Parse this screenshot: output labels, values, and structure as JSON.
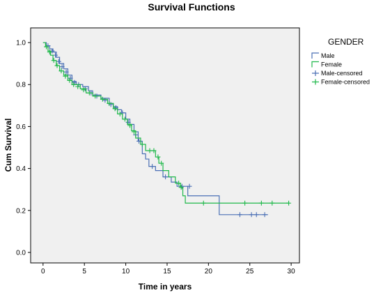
{
  "chart_data": {
    "type": "line",
    "title": "Survival Functions",
    "xlabel": "Time in years",
    "ylabel": "Cum Survival",
    "xlim": [
      -1.5,
      31
    ],
    "ylim": [
      -0.05,
      1.07
    ],
    "x_ticks": [
      0,
      5,
      10,
      15,
      20,
      25,
      30
    ],
    "x_tick_labels": [
      "0",
      "5",
      "10",
      "15",
      "20",
      "25",
      "30"
    ],
    "y_ticks": [
      0.0,
      0.2,
      0.4,
      0.6,
      0.8,
      1.0
    ],
    "y_tick_labels": [
      "0.0",
      "0.2",
      "0.4",
      "0.6",
      "0.8",
      "1.0"
    ],
    "plot_background": "#f0f0f0",
    "grid": false,
    "legend_title": "GENDER",
    "legend_placement": "right",
    "legend": [
      {
        "label": "Male",
        "marker": "step",
        "color": "#4a6fb5"
      },
      {
        "label": "Female",
        "marker": "step",
        "color": "#1fb84a"
      },
      {
        "label": "Male-censored",
        "marker": "plus",
        "color": "#4a6fb5"
      },
      {
        "label": "Female-censored",
        "marker": "plus",
        "color": "#1fb84a"
      }
    ],
    "series": [
      {
        "name": "Male",
        "color": "#4a6fb5",
        "steps": [
          [
            0,
            1.0
          ],
          [
            0.4,
            0.985
          ],
          [
            0.8,
            0.97
          ],
          [
            1.2,
            0.955
          ],
          [
            1.6,
            0.93
          ],
          [
            2.0,
            0.9
          ],
          [
            2.5,
            0.875
          ],
          [
            3.0,
            0.845
          ],
          [
            3.5,
            0.815
          ],
          [
            4.0,
            0.8
          ],
          [
            4.8,
            0.79
          ],
          [
            5.5,
            0.77
          ],
          [
            6.0,
            0.75
          ],
          [
            7.0,
            0.735
          ],
          [
            8.0,
            0.71
          ],
          [
            8.5,
            0.695
          ],
          [
            9.0,
            0.68
          ],
          [
            9.5,
            0.665
          ],
          [
            10.0,
            0.635
          ],
          [
            10.5,
            0.61
          ],
          [
            11.0,
            0.575
          ],
          [
            11.5,
            0.53
          ],
          [
            12.0,
            0.47
          ],
          [
            12.4,
            0.445
          ],
          [
            12.8,
            0.41
          ],
          [
            13.6,
            0.39
          ],
          [
            14.5,
            0.36
          ],
          [
            15.5,
            0.335
          ],
          [
            16.2,
            0.315
          ],
          [
            17.5,
            0.27
          ],
          [
            21.3,
            0.18
          ],
          [
            27.2,
            0.18
          ]
        ],
        "censored": [
          [
            0.6,
            0.985
          ],
          [
            1.1,
            0.96
          ],
          [
            1.5,
            0.94
          ],
          [
            1.9,
            0.91
          ],
          [
            2.3,
            0.885
          ],
          [
            2.8,
            0.86
          ],
          [
            3.3,
            0.83
          ],
          [
            3.8,
            0.81
          ],
          [
            4.3,
            0.8
          ],
          [
            5.1,
            0.78
          ],
          [
            5.8,
            0.76
          ],
          [
            6.5,
            0.745
          ],
          [
            7.5,
            0.725
          ],
          [
            8.2,
            0.705
          ],
          [
            8.8,
            0.69
          ],
          [
            9.6,
            0.665
          ],
          [
            10.3,
            0.62
          ],
          [
            11.2,
            0.56
          ],
          [
            11.6,
            0.53
          ],
          [
            13.2,
            0.41
          ],
          [
            14.8,
            0.36
          ],
          [
            16.8,
            0.315
          ],
          [
            17.7,
            0.315
          ],
          [
            23.8,
            0.18
          ],
          [
            25.2,
            0.18
          ],
          [
            25.8,
            0.18
          ],
          [
            26.8,
            0.18
          ]
        ]
      },
      {
        "name": "Female",
        "color": "#1fb84a",
        "steps": [
          [
            0,
            1.0
          ],
          [
            0.3,
            0.98
          ],
          [
            0.6,
            0.96
          ],
          [
            0.9,
            0.94
          ],
          [
            1.2,
            0.915
          ],
          [
            1.6,
            0.89
          ],
          [
            2.0,
            0.865
          ],
          [
            2.5,
            0.845
          ],
          [
            3.0,
            0.82
          ],
          [
            3.5,
            0.8
          ],
          [
            4.5,
            0.78
          ],
          [
            5.2,
            0.76
          ],
          [
            6.0,
            0.745
          ],
          [
            7.0,
            0.73
          ],
          [
            7.8,
            0.71
          ],
          [
            8.5,
            0.685
          ],
          [
            9.0,
            0.66
          ],
          [
            9.6,
            0.635
          ],
          [
            10.2,
            0.61
          ],
          [
            10.7,
            0.58
          ],
          [
            11.2,
            0.545
          ],
          [
            11.8,
            0.515
          ],
          [
            12.4,
            0.485
          ],
          [
            13.6,
            0.455
          ],
          [
            14.0,
            0.425
          ],
          [
            14.5,
            0.39
          ],
          [
            15.2,
            0.36
          ],
          [
            16.0,
            0.33
          ],
          [
            16.6,
            0.31
          ],
          [
            16.9,
            0.27
          ],
          [
            17.2,
            0.235
          ],
          [
            29.8,
            0.235
          ]
        ],
        "censored": [
          [
            0.4,
            0.98
          ],
          [
            0.8,
            0.955
          ],
          [
            1.3,
            0.915
          ],
          [
            1.7,
            0.89
          ],
          [
            2.2,
            0.865
          ],
          [
            2.7,
            0.84
          ],
          [
            3.2,
            0.82
          ],
          [
            3.7,
            0.8
          ],
          [
            4.2,
            0.79
          ],
          [
            4.9,
            0.775
          ],
          [
            5.6,
            0.76
          ],
          [
            6.3,
            0.745
          ],
          [
            7.2,
            0.73
          ],
          [
            8.0,
            0.71
          ],
          [
            8.7,
            0.685
          ],
          [
            9.3,
            0.66
          ],
          [
            9.9,
            0.635
          ],
          [
            10.5,
            0.605
          ],
          [
            11.0,
            0.575
          ],
          [
            12.0,
            0.515
          ],
          [
            12.9,
            0.485
          ],
          [
            13.4,
            0.485
          ],
          [
            13.9,
            0.455
          ],
          [
            14.3,
            0.425
          ],
          [
            16.4,
            0.33
          ],
          [
            16.7,
            0.31
          ],
          [
            19.4,
            0.235
          ],
          [
            24.4,
            0.235
          ],
          [
            26.4,
            0.235
          ],
          [
            27.7,
            0.235
          ],
          [
            29.7,
            0.235
          ]
        ]
      }
    ]
  }
}
